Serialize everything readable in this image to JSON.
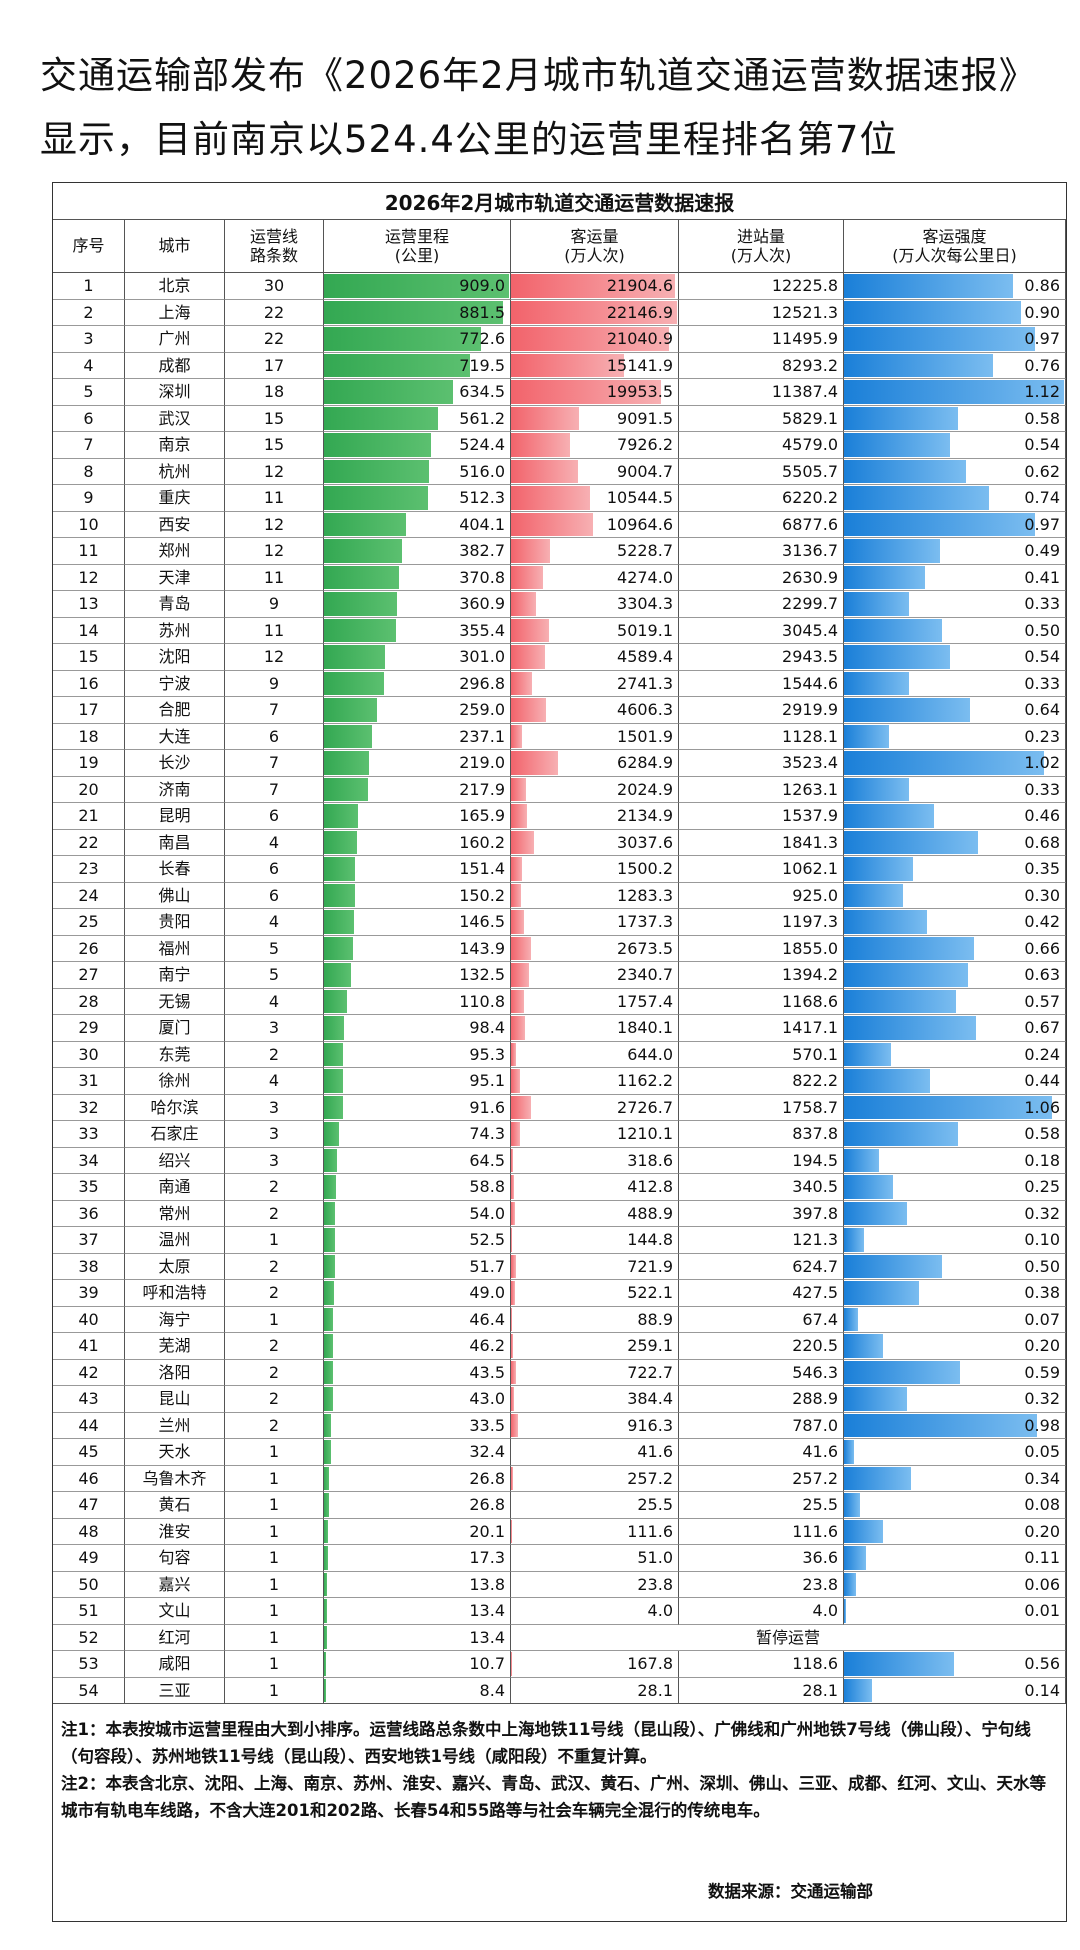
{
  "header": {
    "title": "交通运输部发布《2026年2月城市轨道交通运营数据速报》显示，目前南京以524.4公里的运营里程排名第7位"
  },
  "table": {
    "title": "2026年2月城市轨道交通运营数据速报",
    "columns": [
      "序号",
      "城市",
      "运营线\n路条数",
      "运营里程\n(公里)",
      "客运量\n(万人次)",
      "进站量\n(万人次)",
      "客运强度\n(万人次每公里日)"
    ],
    "rows": [
      [
        1,
        "北京",
        30,
        "909.0",
        "21904.6",
        "12225.8",
        "0.86"
      ],
      [
        2,
        "上海",
        22,
        "881.5",
        "22146.9",
        "12521.3",
        "0.90"
      ],
      [
        3,
        "广州",
        22,
        "772.6",
        "21040.9",
        "11495.9",
        "0.97"
      ],
      [
        4,
        "成都",
        17,
        "719.5",
        "15141.9",
        "8293.2",
        "0.76"
      ],
      [
        5,
        "深圳",
        18,
        "634.5",
        "19953.5",
        "11387.4",
        "1.12"
      ],
      [
        6,
        "武汉",
        15,
        "561.2",
        "9091.5",
        "5829.1",
        "0.58"
      ],
      [
        7,
        "南京",
        15,
        "524.4",
        "7926.2",
        "4579.0",
        "0.54"
      ],
      [
        8,
        "杭州",
        12,
        "516.0",
        "9004.7",
        "5505.7",
        "0.62"
      ],
      [
        9,
        "重庆",
        11,
        "512.3",
        "10544.5",
        "6220.2",
        "0.74"
      ],
      [
        10,
        "西安",
        12,
        "404.1",
        "10964.6",
        "6877.6",
        "0.97"
      ],
      [
        11,
        "郑州",
        12,
        "382.7",
        "5228.7",
        "3136.7",
        "0.49"
      ],
      [
        12,
        "天津",
        11,
        "370.8",
        "4274.0",
        "2630.9",
        "0.41"
      ],
      [
        13,
        "青岛",
        9,
        "360.9",
        "3304.3",
        "2299.7",
        "0.33"
      ],
      [
        14,
        "苏州",
        11,
        "355.4",
        "5019.1",
        "3045.4",
        "0.50"
      ],
      [
        15,
        "沈阳",
        12,
        "301.0",
        "4589.4",
        "2943.5",
        "0.54"
      ],
      [
        16,
        "宁波",
        9,
        "296.8",
        "2741.3",
        "1544.6",
        "0.33"
      ],
      [
        17,
        "合肥",
        7,
        "259.0",
        "4606.3",
        "2919.9",
        "0.64"
      ],
      [
        18,
        "大连",
        6,
        "237.1",
        "1501.9",
        "1128.1",
        "0.23"
      ],
      [
        19,
        "长沙",
        7,
        "219.0",
        "6284.9",
        "3523.4",
        "1.02"
      ],
      [
        20,
        "济南",
        7,
        "217.9",
        "2024.9",
        "1263.1",
        "0.33"
      ],
      [
        21,
        "昆明",
        6,
        "165.9",
        "2134.9",
        "1537.9",
        "0.46"
      ],
      [
        22,
        "南昌",
        4,
        "160.2",
        "3037.6",
        "1841.3",
        "0.68"
      ],
      [
        23,
        "长春",
        6,
        "151.4",
        "1500.2",
        "1062.1",
        "0.35"
      ],
      [
        24,
        "佛山",
        6,
        "150.2",
        "1283.3",
        "925.0",
        "0.30"
      ],
      [
        25,
        "贵阳",
        4,
        "146.5",
        "1737.3",
        "1197.3",
        "0.42"
      ],
      [
        26,
        "福州",
        5,
        "143.9",
        "2673.5",
        "1855.0",
        "0.66"
      ],
      [
        27,
        "南宁",
        5,
        "132.5",
        "2340.7",
        "1394.2",
        "0.63"
      ],
      [
        28,
        "无锡",
        4,
        "110.8",
        "1757.4",
        "1168.6",
        "0.57"
      ],
      [
        29,
        "厦门",
        3,
        "98.4",
        "1840.1",
        "1417.1",
        "0.67"
      ],
      [
        30,
        "东莞",
        2,
        "95.3",
        "644.0",
        "570.1",
        "0.24"
      ],
      [
        31,
        "徐州",
        4,
        "95.1",
        "1162.2",
        "822.2",
        "0.44"
      ],
      [
        32,
        "哈尔滨",
        3,
        "91.6",
        "2726.7",
        "1758.7",
        "1.06"
      ],
      [
        33,
        "石家庄",
        3,
        "74.3",
        "1210.1",
        "837.8",
        "0.58"
      ],
      [
        34,
        "绍兴",
        3,
        "64.5",
        "318.6",
        "194.5",
        "0.18"
      ],
      [
        35,
        "南通",
        2,
        "58.8",
        "412.8",
        "340.5",
        "0.25"
      ],
      [
        36,
        "常州",
        2,
        "54.0",
        "488.9",
        "397.8",
        "0.32"
      ],
      [
        37,
        "温州",
        1,
        "52.5",
        "144.8",
        "121.3",
        "0.10"
      ],
      [
        38,
        "太原",
        2,
        "51.7",
        "721.9",
        "624.7",
        "0.50"
      ],
      [
        39,
        "呼和浩特",
        2,
        "49.0",
        "522.1",
        "427.5",
        "0.38"
      ],
      [
        40,
        "海宁",
        1,
        "46.4",
        "88.9",
        "67.4",
        "0.07"
      ],
      [
        41,
        "芜湖",
        2,
        "46.2",
        "259.1",
        "220.5",
        "0.20"
      ],
      [
        42,
        "洛阳",
        2,
        "43.5",
        "722.7",
        "546.3",
        "0.59"
      ],
      [
        43,
        "昆山",
        2,
        "43.0",
        "384.4",
        "288.9",
        "0.32"
      ],
      [
        44,
        "兰州",
        2,
        "33.5",
        "916.3",
        "787.0",
        "0.98"
      ],
      [
        45,
        "天水",
        1,
        "32.4",
        "41.6",
        "41.6",
        "0.05"
      ],
      [
        46,
        "乌鲁木齐",
        1,
        "26.8",
        "257.2",
        "257.2",
        "0.34"
      ],
      [
        47,
        "黄石",
        1,
        "26.8",
        "25.5",
        "25.5",
        "0.08"
      ],
      [
        48,
        "淮安",
        1,
        "20.1",
        "111.6",
        "111.6",
        "0.20"
      ],
      [
        49,
        "句容",
        1,
        "17.3",
        "51.0",
        "36.6",
        "0.11"
      ],
      [
        50,
        "嘉兴",
        1,
        "13.8",
        "23.8",
        "23.8",
        "0.06"
      ],
      [
        51,
        "文山",
        1,
        "13.4",
        "4.0",
        "4.0",
        "0.01"
      ],
      [
        52,
        "红河",
        1,
        "13.4",
        "暂停运营"
      ],
      [
        53,
        "咸阳",
        1,
        "10.7",
        "167.8",
        "118.6",
        "0.56"
      ],
      [
        54,
        "三亚",
        1,
        "8.4",
        "28.1",
        "28.1",
        "0.14"
      ]
    ]
  },
  "notes": [
    "注1：本表按城市运营里程由大到小排序。运营线路总条数中上海地铁11号线（昆山段）、广佛线和广州地铁7号线（佛山段）、宁句线（句容段）、苏州地铁11号线（昆山段）、西安地铁1号线（咸阳段）不重复计算。",
    "注2：本表含北京、沈阳、上海、南京、苏州、淮安、嘉兴、青岛、武汉、黄石、广州、深圳、佛山、三亚、成都、红河、文山、天水等城市有轨电车线路，不含大连201和202路、长春54和55路等与社会车辆完全混行的传统电车。"
  ],
  "source": "数据来源：交通运输部"
}
